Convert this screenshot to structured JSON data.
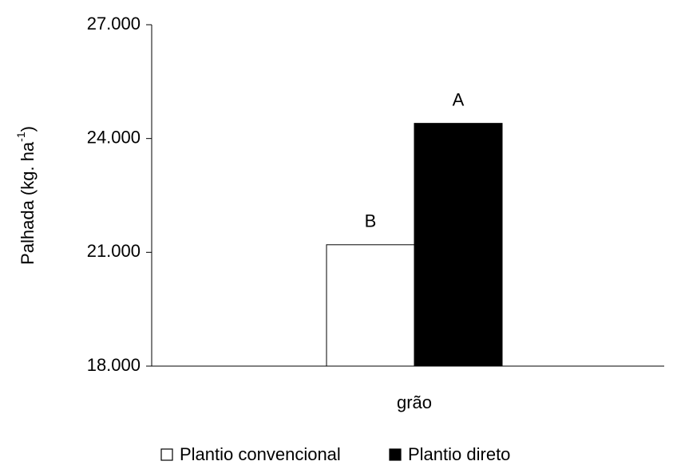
{
  "chart_data": {
    "type": "bar",
    "ylabel": "Palhada (kg. ha",
    "ylabel_superscript": "-1",
    "ylabel_end": ")",
    "categories": [
      "grão"
    ],
    "series": [
      {
        "name": "Plantio convencional",
        "color": "#ffffff",
        "values": [
          21200
        ],
        "significance": [
          "B"
        ]
      },
      {
        "name": "Plantio direto",
        "color": "#000000",
        "values": [
          24400
        ],
        "significance": [
          "A"
        ]
      }
    ],
    "ylim": [
      18000,
      27000
    ],
    "yticks": [
      {
        "value": 18000,
        "label": "18.000"
      },
      {
        "value": 21000,
        "label": "21.000"
      },
      {
        "value": 24000,
        "label": "24.000"
      },
      {
        "value": 27000,
        "label": "27.000"
      }
    ],
    "grid": false
  }
}
